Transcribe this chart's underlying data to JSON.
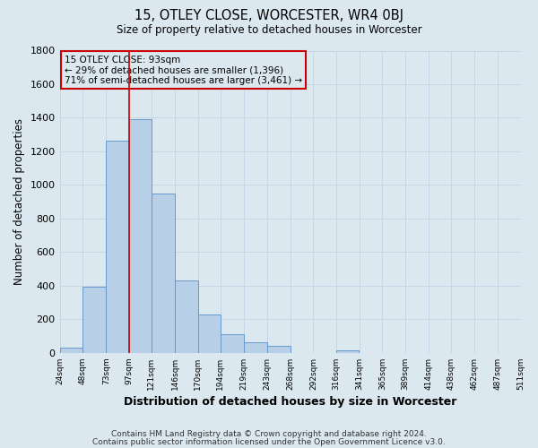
{
  "title1": "15, OTLEY CLOSE, WORCESTER, WR4 0BJ",
  "title2": "Size of property relative to detached houses in Worcester",
  "xlabel": "Distribution of detached houses by size in Worcester",
  "ylabel": "Number of detached properties",
  "bar_left_edges": [
    24,
    48,
    73,
    97,
    121,
    146,
    170,
    194,
    219,
    243,
    268,
    292,
    316,
    341,
    365,
    389,
    414,
    438,
    462,
    487
  ],
  "bar_widths": [
    24,
    25,
    24,
    24,
    25,
    24,
    24,
    25,
    24,
    25,
    24,
    25,
    24,
    25,
    24,
    25,
    24,
    25,
    24,
    24
  ],
  "bar_heights": [
    30,
    395,
    1265,
    1390,
    950,
    430,
    230,
    110,
    65,
    40,
    0,
    0,
    15,
    0,
    0,
    0,
    0,
    0,
    0,
    0
  ],
  "bar_color": "#b8cfe8",
  "bar_edgecolor": "#6699cc",
  "ylim": [
    0,
    1800
  ],
  "yticks": [
    0,
    200,
    400,
    600,
    800,
    1000,
    1200,
    1400,
    1600,
    1800
  ],
  "xlim": [
    24,
    511
  ],
  "xtick_labels": [
    "24sqm",
    "48sqm",
    "73sqm",
    "97sqm",
    "121sqm",
    "146sqm",
    "170sqm",
    "194sqm",
    "219sqm",
    "243sqm",
    "268sqm",
    "292sqm",
    "316sqm",
    "341sqm",
    "365sqm",
    "389sqm",
    "414sqm",
    "438sqm",
    "462sqm",
    "487sqm",
    "511sqm"
  ],
  "xtick_positions": [
    24,
    48,
    73,
    97,
    121,
    146,
    170,
    194,
    219,
    243,
    268,
    292,
    316,
    341,
    365,
    389,
    414,
    438,
    462,
    487,
    511
  ],
  "vline_x": 97,
  "vline_color": "#cc0000",
  "annotation_title": "15 OTLEY CLOSE: 93sqm",
  "annotation_line1": "← 29% of detached houses are smaller (1,396)",
  "annotation_line2": "71% of semi-detached houses are larger (3,461) →",
  "box_edgecolor": "#cc0000",
  "grid_color": "#c8d4e8",
  "bg_color": "#dce8f0",
  "footer1": "Contains HM Land Registry data © Crown copyright and database right 2024.",
  "footer2": "Contains public sector information licensed under the Open Government Licence v3.0."
}
